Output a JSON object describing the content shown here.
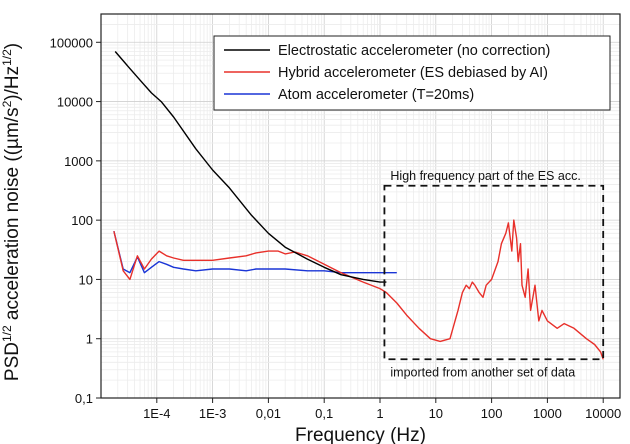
{
  "chart_data": {
    "type": "line",
    "xlabel": "Frequency (Hz)",
    "ylabel_parts": [
      "PSD",
      "1/2",
      " acceleration noise ((µm/s",
      "2",
      ")/Hz",
      "1/2",
      ")"
    ],
    "x_scale": "log",
    "y_scale": "log",
    "xlim": [
      1e-05,
      20000
    ],
    "ylim": [
      0.1,
      300000
    ],
    "grid": true,
    "legend_position": "top-right",
    "x_ticks": [
      {
        "value": 0.0001,
        "label": "1E-4"
      },
      {
        "value": 0.001,
        "label": "1E-3"
      },
      {
        "value": 0.01,
        "label": "0,01"
      },
      {
        "value": 0.1,
        "label": "0,1"
      },
      {
        "value": 1,
        "label": "1"
      },
      {
        "value": 10,
        "label": "10"
      },
      {
        "value": 100,
        "label": "100"
      },
      {
        "value": 1000,
        "label": "1000"
      },
      {
        "value": 10000,
        "label": "10000"
      }
    ],
    "y_ticks": [
      {
        "value": 0.1,
        "label": "0,1"
      },
      {
        "value": 1,
        "label": "1"
      },
      {
        "value": 10,
        "label": "10"
      },
      {
        "value": 100,
        "label": "100"
      },
      {
        "value": 1000,
        "label": "1000"
      },
      {
        "value": 10000,
        "label": "10000"
      },
      {
        "value": 100000,
        "label": "100000"
      }
    ],
    "series": [
      {
        "name": "Electrostatic accelerometer (no correction)",
        "color": "#000000",
        "x": [
          1.8e-05,
          3e-05,
          5e-05,
          8e-05,
          0.00012,
          0.0002,
          0.0005,
          0.001,
          0.002,
          0.005,
          0.01,
          0.02,
          0.05,
          0.1,
          0.2,
          0.5,
          1,
          1.3
        ],
        "y": [
          70000,
          40000,
          23000,
          14000,
          10000,
          5500,
          1600,
          700,
          350,
          120,
          60,
          35,
          22,
          16,
          12,
          10,
          9,
          9
        ]
      },
      {
        "name": "Hybrid accelerometer (ES debiased by AI)",
        "color": "#e8302a",
        "x": [
          1.7e-05,
          2.5e-05,
          3.3e-05,
          4.5e-05,
          6e-05,
          8e-05,
          0.00011,
          0.00015,
          0.0002,
          0.0003,
          0.0005,
          0.001,
          0.002,
          0.004,
          0.006,
          0.01,
          0.015,
          0.02,
          0.03,
          0.05,
          0.1,
          0.2,
          0.5,
          1,
          1.3,
          2,
          3,
          5,
          8,
          12,
          18,
          25,
          30,
          35,
          40,
          45,
          50,
          60,
          70,
          80,
          100,
          130,
          150,
          180,
          200,
          230,
          250,
          280,
          300,
          330,
          350,
          400,
          450,
          500,
          600,
          700,
          800,
          1000,
          1500,
          2000,
          3000,
          5000,
          7000,
          9000,
          10000
        ],
        "y": [
          65,
          14,
          10,
          25,
          15,
          22,
          30,
          25,
          23,
          21,
          21,
          21,
          23,
          25,
          28,
          30,
          30,
          27,
          29,
          25,
          18,
          13,
          9,
          7,
          6,
          4,
          2.5,
          1.5,
          1,
          0.9,
          1,
          3,
          6,
          8,
          7,
          9,
          8,
          6,
          5,
          8,
          10,
          20,
          40,
          60,
          90,
          30,
          100,
          50,
          20,
          40,
          8,
          5,
          15,
          3,
          8,
          2,
          3,
          2,
          1.5,
          1.8,
          1.5,
          1,
          0.8,
          0.6,
          0.45
        ]
      },
      {
        "name": "Atom accelerometer (T=20ms)",
        "color": "#1a35d6",
        "x": [
          1.7e-05,
          2.5e-05,
          3.3e-05,
          4.5e-05,
          6e-05,
          8e-05,
          0.00011,
          0.00015,
          0.0002,
          0.0003,
          0.0005,
          0.001,
          0.002,
          0.004,
          0.006,
          0.01,
          0.02,
          0.05,
          0.1,
          0.2,
          0.5,
          1,
          1.5,
          2
        ],
        "y": [
          65,
          15,
          13,
          24,
          13,
          16,
          20,
          18,
          16,
          15,
          14,
          15,
          15,
          14,
          15,
          15,
          15,
          14,
          14,
          13,
          13,
          13,
          13,
          13
        ]
      }
    ],
    "annotations": {
      "box": {
        "x": [
          1.2,
          10000
        ],
        "y": [
          0.45,
          380
        ]
      },
      "top_text": "High frequency part of the ES acc.",
      "bottom_text": "imported from another set of data"
    }
  }
}
